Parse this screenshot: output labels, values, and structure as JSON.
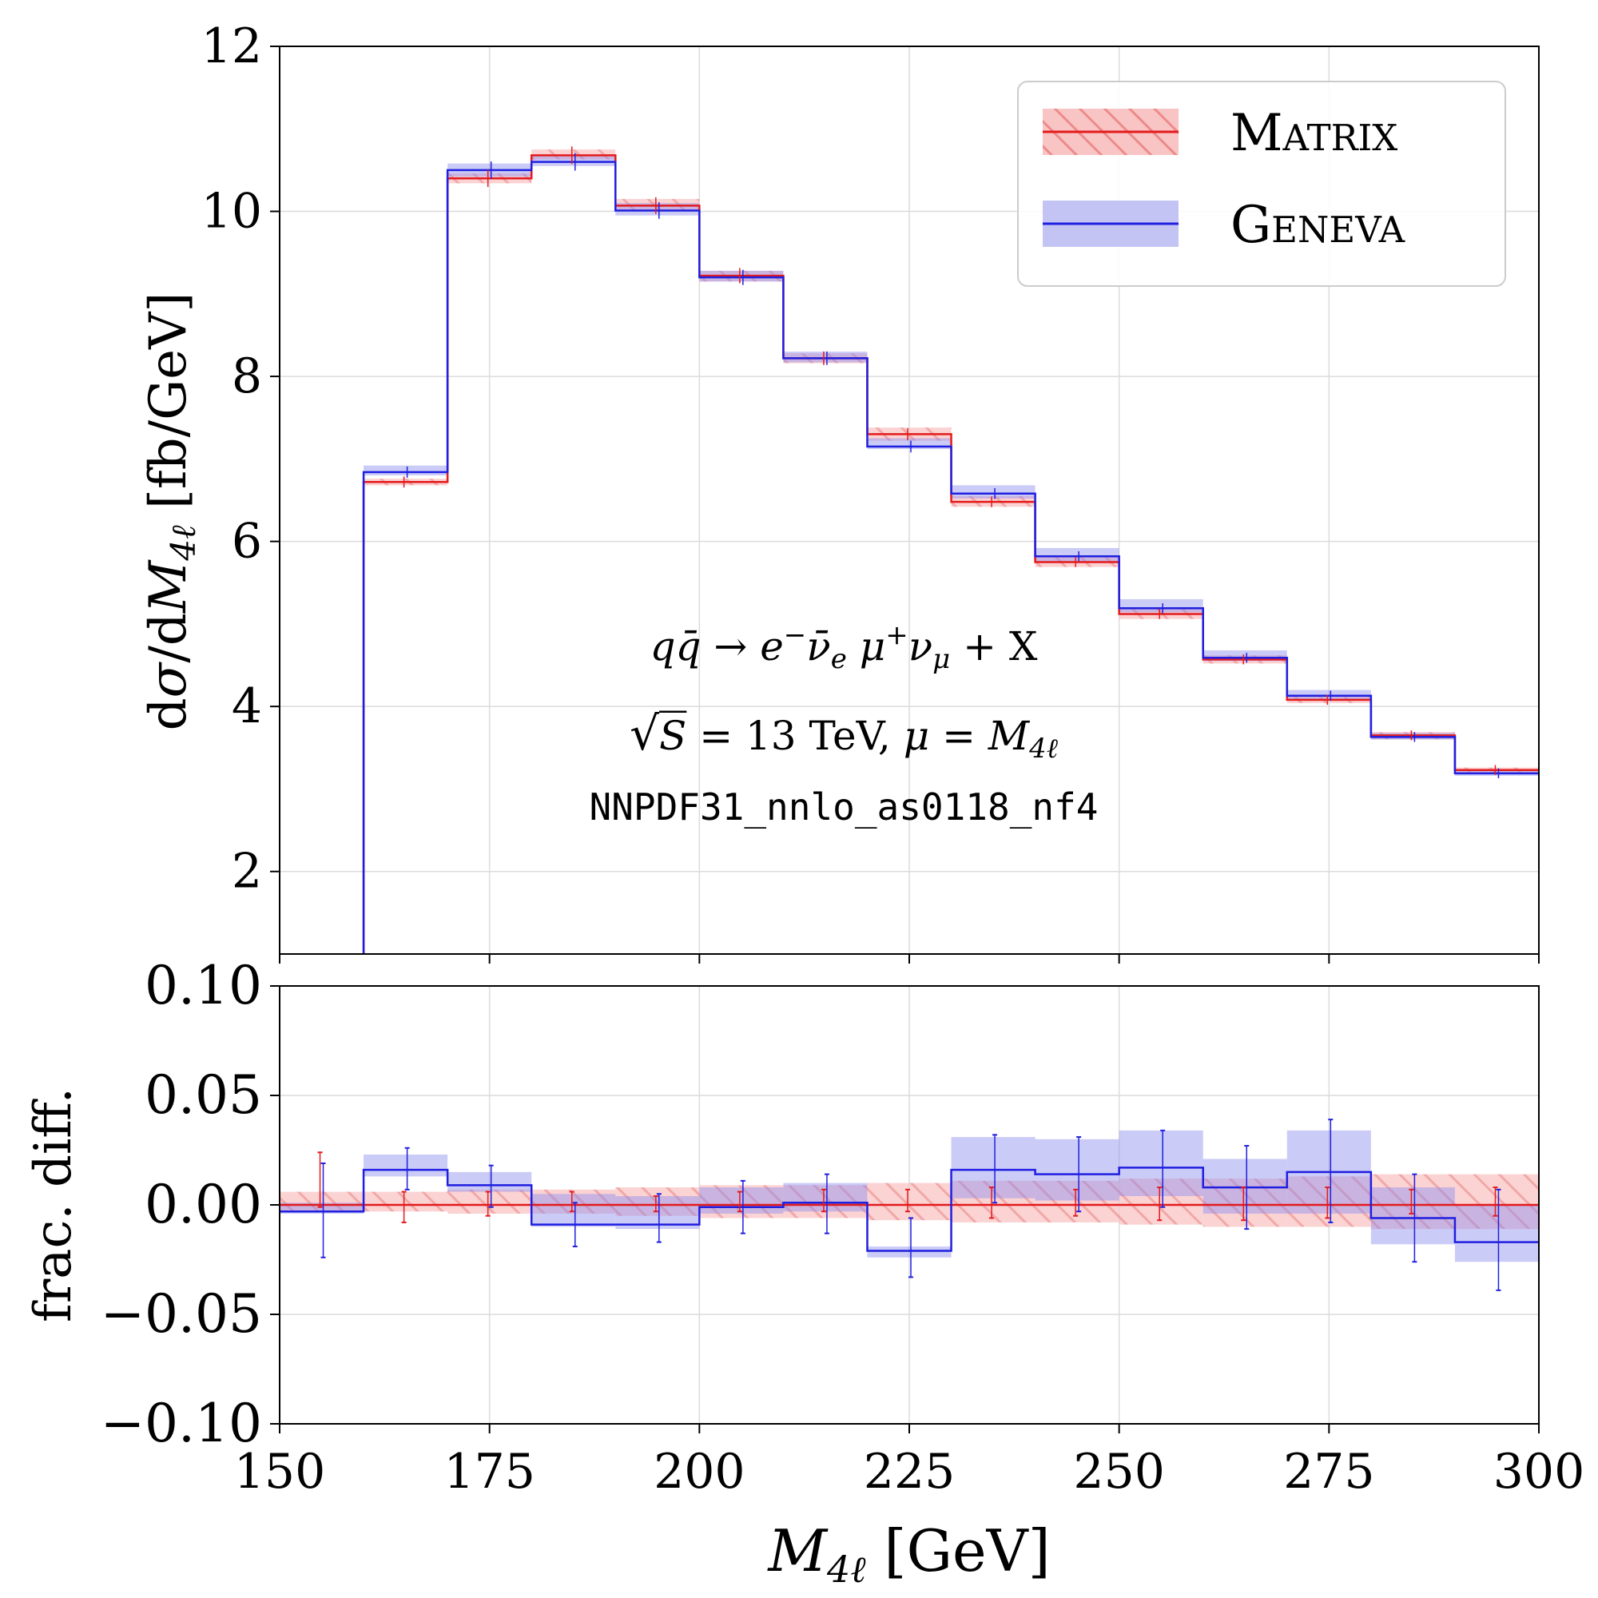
{
  "chart_data": [
    {
      "type": "line",
      "panel": "main",
      "ylabel": "dσ/dM4ℓ [fb/GeV]",
      "ylabel_parts": {
        "d1": "d",
        "sigma": "σ",
        "slash_d": "/d",
        "M": "M",
        "sub": "4ℓ",
        "unit": " [fb/GeV]"
      },
      "xlim": [
        150,
        300
      ],
      "ylim": [
        1,
        12
      ],
      "yticks": [
        "2",
        "4",
        "6",
        "8",
        "10",
        "12"
      ],
      "grid": true,
      "legend_position": "top-right",
      "bin_edges": [
        150,
        160,
        170,
        180,
        190,
        200,
        210,
        220,
        230,
        240,
        250,
        260,
        270,
        280,
        290,
        300
      ],
      "series": [
        {
          "name": "Matrix",
          "color": "#e41a1c",
          "values": [
            0.95,
            6.72,
            10.4,
            10.68,
            10.07,
            9.22,
            8.22,
            7.3,
            6.48,
            5.75,
            5.12,
            4.57,
            4.08,
            3.65,
            3.23
          ],
          "band_lo": [
            0.93,
            6.68,
            10.34,
            10.63,
            10.0,
            9.15,
            8.16,
            7.22,
            6.42,
            5.69,
            5.06,
            4.52,
            4.04,
            3.6,
            3.2
          ],
          "band_hi": [
            0.97,
            6.76,
            10.46,
            10.75,
            10.15,
            9.28,
            8.28,
            7.38,
            6.55,
            5.81,
            5.18,
            4.62,
            4.12,
            3.69,
            3.26
          ]
        },
        {
          "name": "Geneva",
          "color": "#1f1fe0",
          "values": [
            0.95,
            6.84,
            10.5,
            10.6,
            10.01,
            9.2,
            8.22,
            7.15,
            6.58,
            5.82,
            5.19,
            4.59,
            4.13,
            3.63,
            3.19
          ],
          "band_lo": [
            0.93,
            6.8,
            10.42,
            10.55,
            9.95,
            9.15,
            8.17,
            7.12,
            6.52,
            5.76,
            5.14,
            4.55,
            4.08,
            3.6,
            3.16
          ],
          "band_hi": [
            0.97,
            6.92,
            10.58,
            10.68,
            10.1,
            9.28,
            8.3,
            7.25,
            6.68,
            5.92,
            5.3,
            4.68,
            4.2,
            3.68,
            3.22
          ]
        }
      ],
      "annotations": {
        "process": {
          "q": "q",
          "qbar": "q̄",
          "arrow": " → ",
          "e": "e",
          "e_sup": "−",
          "nubar": "ν̄",
          "nubar_sub": "e",
          "mu": " μ",
          "mu_sup": "+",
          "nu": "ν",
          "nu_sub": "μ",
          "plusx": " + X"
        },
        "energy": {
          "sqrt": "√",
          "S": "S",
          "eq": " = 13 TeV, ",
          "mu": "μ",
          "eq2": " = ",
          "M": "M",
          "sub": "4ℓ"
        },
        "pdf": "NNPDF31_nnlo_as0118_nf4"
      }
    },
    {
      "type": "line",
      "panel": "ratio",
      "ylabel": "frac. diff.",
      "xlabel": "M4ℓ [GeV]",
      "xlabel_parts": {
        "M": "M",
        "sub": "4ℓ",
        "unit": " [GeV]"
      },
      "xlim": [
        150,
        300
      ],
      "ylim": [
        -0.1,
        0.1
      ],
      "xticks": [
        "150",
        "175",
        "200",
        "225",
        "250",
        "275",
        "300"
      ],
      "yticks": [
        "0.10",
        "0.05",
        "0.00",
        "−0.05",
        "−0.10"
      ],
      "grid": true,
      "bin_edges": [
        150,
        160,
        170,
        180,
        190,
        200,
        210,
        220,
        230,
        240,
        250,
        260,
        270,
        280,
        290,
        300
      ],
      "series": [
        {
          "name": "Matrix",
          "color": "#e41a1c",
          "values": [
            0,
            0,
            0,
            0,
            0,
            0,
            0,
            0,
            0,
            0,
            0,
            0,
            0,
            0,
            0
          ],
          "band_lo": [
            -0.003,
            -0.003,
            -0.004,
            -0.004,
            -0.005,
            -0.006,
            -0.006,
            -0.007,
            -0.008,
            -0.008,
            -0.009,
            -0.01,
            -0.01,
            -0.011,
            -0.011
          ],
          "band_hi": [
            0.006,
            0.006,
            0.007,
            0.007,
            0.008,
            0.009,
            0.009,
            0.01,
            0.011,
            0.011,
            0.012,
            0.012,
            0.013,
            0.014,
            0.014
          ],
          "err_lo": [
            -0.001,
            -0.008,
            -0.005,
            -0.003,
            -0.003,
            -0.003,
            -0.003,
            -0.003,
            -0.006,
            -0.005,
            -0.007,
            -0.007,
            -0.006,
            -0.004,
            -0.005
          ],
          "err_hi": [
            0.024,
            0.006,
            0.006,
            0.006,
            0.004,
            0.006,
            0.007,
            0.007,
            0.008,
            0.007,
            0.008,
            0.008,
            0.008,
            0.007,
            0.008
          ]
        },
        {
          "name": "Geneva",
          "color": "#1f1fe0",
          "values": [
            -0.003,
            0.016,
            0.009,
            -0.009,
            -0.009,
            -0.001,
            0.001,
            -0.021,
            0.016,
            0.014,
            0.017,
            0.008,
            0.015,
            -0.006,
            -0.017
          ],
          "band_lo": [
            -0.004,
            0.013,
            0.006,
            -0.01,
            -0.011,
            -0.004,
            -0.003,
            -0.024,
            0.003,
            0.002,
            0.004,
            -0.004,
            -0.004,
            -0.018,
            -0.026
          ],
          "band_hi": [
            0.001,
            0.023,
            0.015,
            0.005,
            0.004,
            0.008,
            0.01,
            -0.019,
            0.031,
            0.03,
            0.034,
            0.021,
            0.034,
            0.008,
            0.0
          ],
          "err_lo": [
            -0.024,
            0.007,
            -0.001,
            -0.019,
            -0.017,
            -0.013,
            -0.013,
            -0.033,
            0.001,
            -0.003,
            -0.001,
            -0.011,
            -0.008,
            -0.026,
            -0.039
          ],
          "err_hi": [
            0.019,
            0.026,
            0.018,
            0.001,
            0.005,
            0.011,
            0.014,
            -0.006,
            0.032,
            0.031,
            0.034,
            0.027,
            0.039,
            0.014,
            0.007
          ]
        }
      ]
    }
  ],
  "legend": [
    {
      "label": "Matrix",
      "color": "#e41a1c",
      "band": "#f5aaaa"
    },
    {
      "label": "Geneva",
      "color": "#1f1fe0",
      "band": "#b0b0f0"
    }
  ]
}
